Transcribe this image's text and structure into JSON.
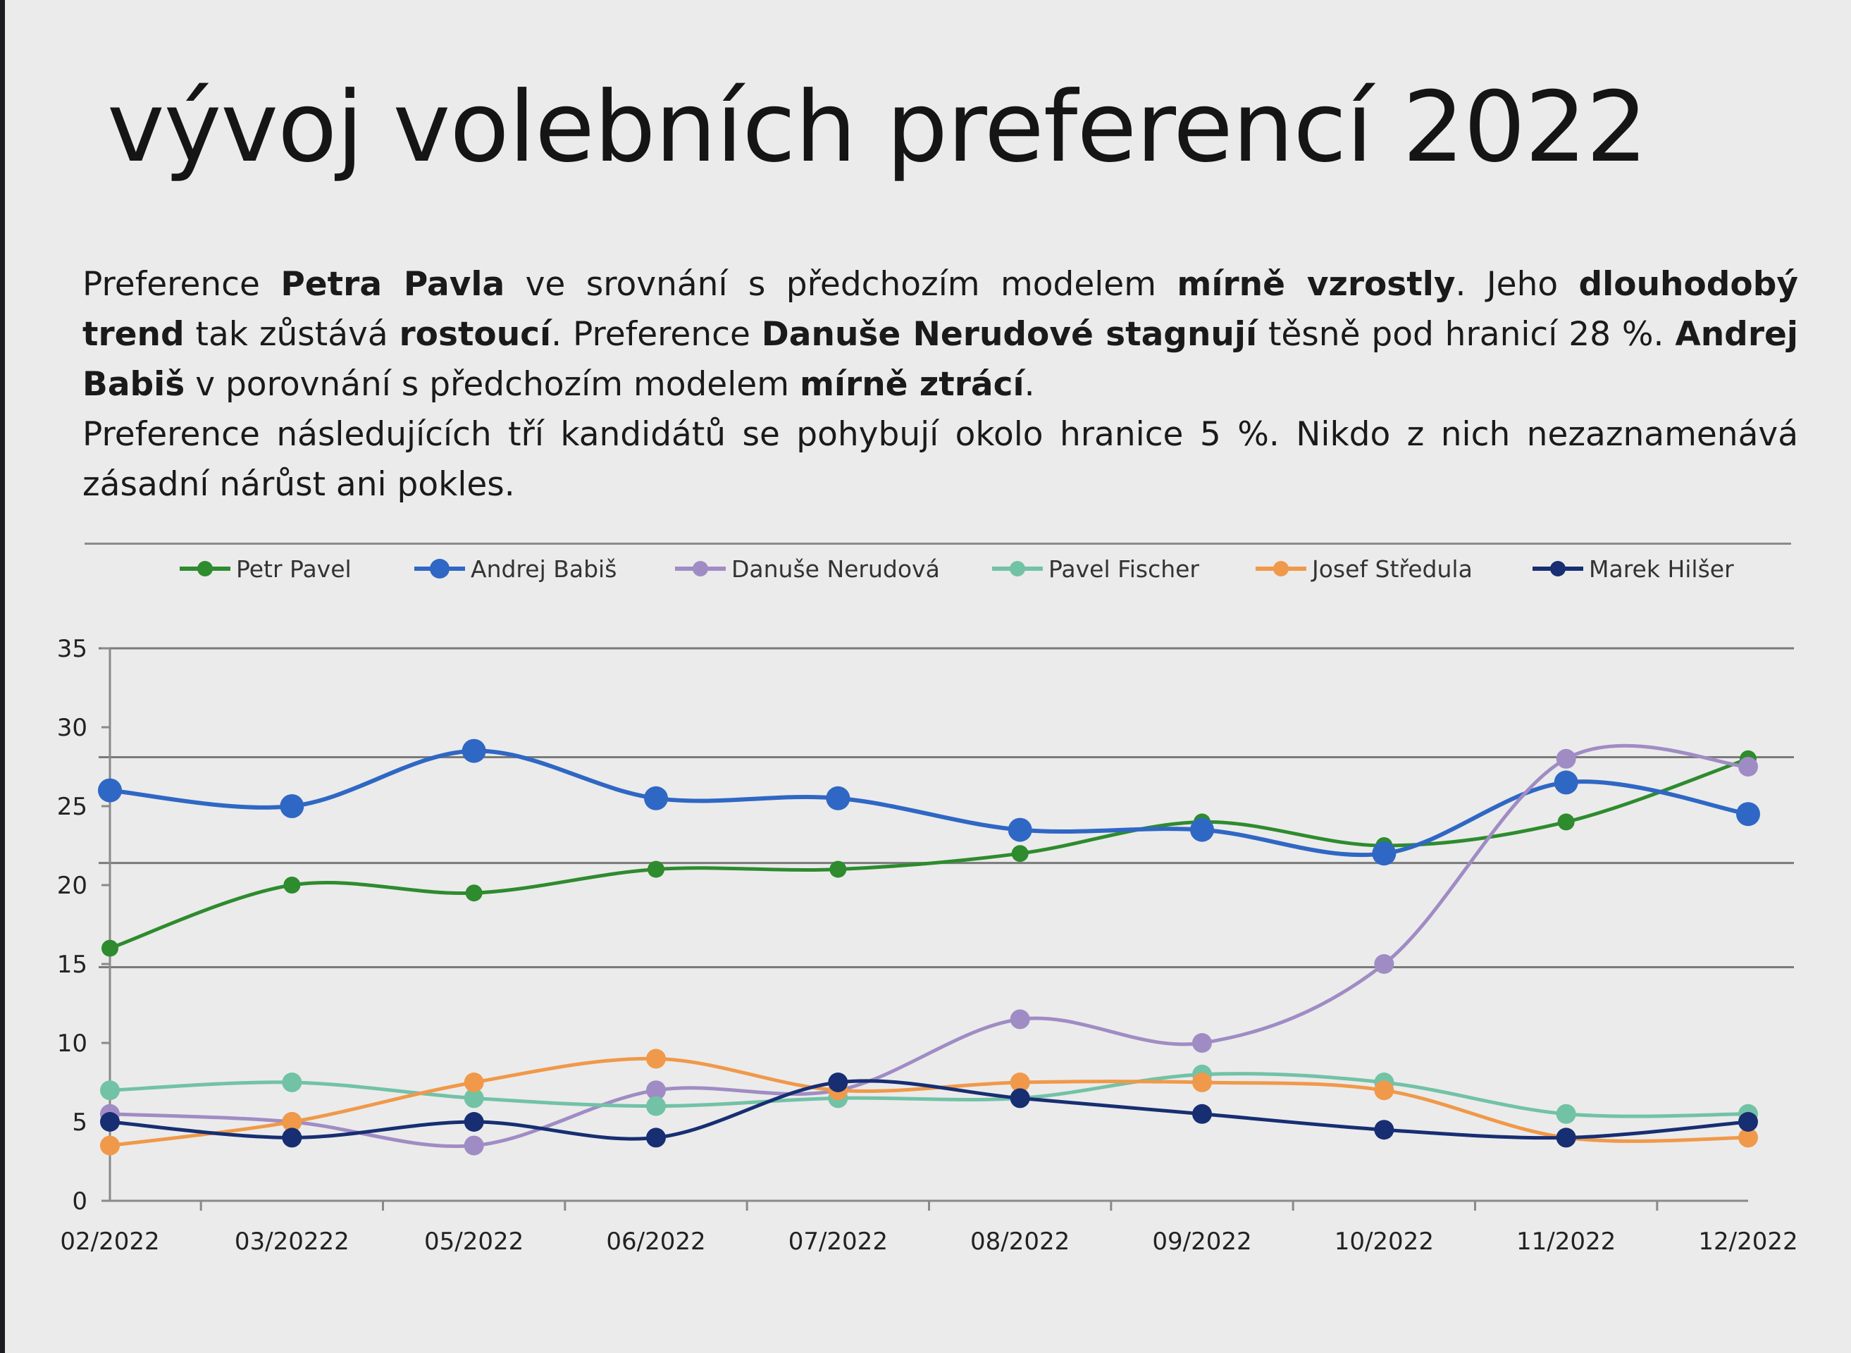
{
  "title": "vývoj volebních preferencí 2022",
  "paragraph": {
    "line1": [
      {
        "t": "Preference ",
        "b": false
      },
      {
        "t": "Petra Pavla",
        "b": true
      },
      {
        "t": " ve srovnání s předchozím modelem ",
        "b": false
      },
      {
        "t": "mírně vzrostly",
        "b": true
      },
      {
        "t": ". Jeho ",
        "b": false
      },
      {
        "t": "dlouhodobý trend",
        "b": true
      },
      {
        "t": " tak zůstává ",
        "b": false
      },
      {
        "t": "rostoucí",
        "b": true
      },
      {
        "t": ". Preference ",
        "b": false
      },
      {
        "t": "Danuše Nerudové stagnují",
        "b": true
      },
      {
        "t": " těsně pod hranicí 28 %. ",
        "b": false
      },
      {
        "t": "Andrej Babiš",
        "b": true
      },
      {
        "t": " v porovnání s předchozím modelem ",
        "b": false
      },
      {
        "t": "mírně ztrácí",
        "b": true
      },
      {
        "t": ".",
        "b": false
      }
    ],
    "line2": "Preference následujících tří kandidátů se pohybují okolo hranice 5 %. Nikdo z nich nezaznamenává zásadní nárůst ani pokles."
  },
  "chart_data": {
    "type": "line",
    "title": "",
    "xlabel": "",
    "ylabel": "",
    "ylim": [
      0,
      35
    ],
    "yticks": [
      0,
      5,
      10,
      15,
      20,
      25,
      30,
      35
    ],
    "reference_lines": [
      35,
      28.1,
      21.4,
      14.8
    ],
    "legend_position": "top",
    "categories": [
      "02/2022",
      "03/20222",
      "05/2022",
      "06/2022",
      "07/2022",
      "08/2022",
      "09/2022",
      "10/2022",
      "11/2022",
      "12/2022"
    ],
    "series": [
      {
        "name": "Petr Pavel",
        "color": "#2e8b2e",
        "marker": "small",
        "values": [
          16,
          20,
          19.5,
          21,
          21,
          22,
          24,
          22.5,
          24,
          28
        ]
      },
      {
        "name": "Andrej Babiš",
        "color": "#2f67c4",
        "marker": "large",
        "values": [
          26,
          25,
          28.5,
          25.5,
          25.5,
          23.5,
          23.5,
          22,
          26.5,
          24.5
        ]
      },
      {
        "name": "Danuše Nerudová",
        "color": "#a08cc4",
        "marker": "medium",
        "values": [
          5.5,
          5,
          3.5,
          7,
          7,
          11.5,
          10,
          15,
          28,
          27.5
        ]
      },
      {
        "name": "Pavel Fischer",
        "color": "#72c2a6",
        "marker": "medium",
        "values": [
          7,
          7.5,
          6.5,
          6,
          6.5,
          6.5,
          8,
          7.5,
          5.5,
          5.5
        ]
      },
      {
        "name": "Josef Středula",
        "color": "#f0994a",
        "marker": "medium",
        "values": [
          3.5,
          5,
          7.5,
          9,
          7,
          7.5,
          7.5,
          7,
          4,
          4
        ]
      },
      {
        "name": "Marek Hilšer",
        "color": "#172e72",
        "marker": "medium",
        "values": [
          5,
          4,
          5,
          4,
          7.5,
          6.5,
          5.5,
          4.5,
          4,
          5
        ]
      }
    ]
  }
}
